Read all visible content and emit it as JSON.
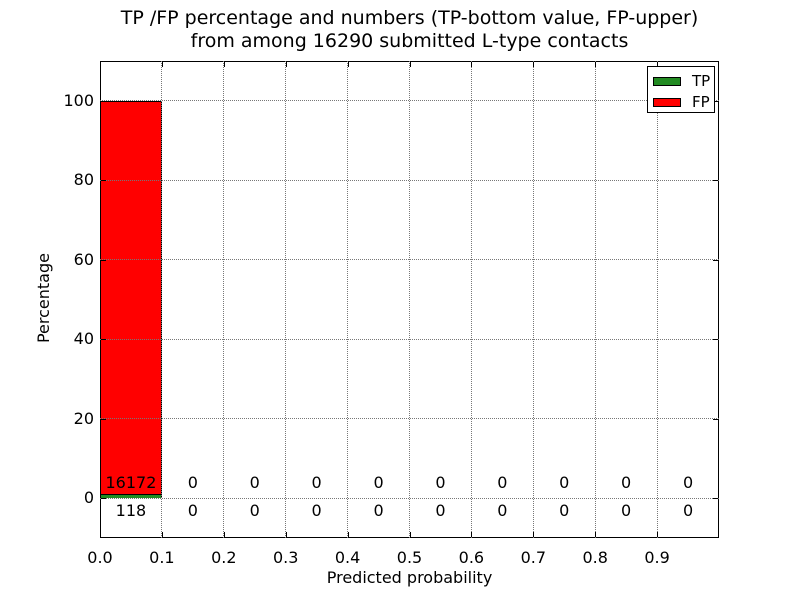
{
  "figure": {
    "title_line1": "TP /FP percentage and numbers (TP-bottom value, FP-upper)",
    "title_line2": "from among 16290 submitted L-type contacts",
    "background": "#ffffff"
  },
  "axes": {
    "xlabel": "Predicted probability",
    "ylabel": "Percentage"
  },
  "legend": {
    "position": "upper right",
    "items": [
      {
        "label": "TP",
        "color": "#228b22"
      },
      {
        "label": "FP",
        "color": "#ff0000"
      }
    ]
  },
  "chart_data": {
    "type": "bar",
    "stacked": true,
    "title": "TP /FP percentage and numbers (TP-bottom value, FP-upper) from among 16290 submitted L-type contacts",
    "xlabel": "Predicted probability",
    "ylabel": "Percentage",
    "xlim": [
      0.0,
      1.0
    ],
    "ylim": [
      -10,
      110
    ],
    "grid": "dotted",
    "legend_position": "upper right",
    "total_contacts": 16290,
    "bin_width": 0.1,
    "bin_starts": [
      0.0,
      0.1,
      0.2,
      0.3,
      0.4,
      0.5,
      0.6,
      0.7,
      0.8,
      0.9
    ],
    "xtick_values": [
      0.0,
      0.1,
      0.2,
      0.3,
      0.4,
      0.5,
      0.6,
      0.7,
      0.8,
      0.9
    ],
    "xtick_labels": [
      "0.0",
      "0.1",
      "0.2",
      "0.3",
      "0.4",
      "0.5",
      "0.6",
      "0.7",
      "0.8",
      "0.9"
    ],
    "ytick_values": [
      0,
      20,
      40,
      60,
      80,
      100
    ],
    "ytick_labels": [
      "0",
      "20",
      "40",
      "60",
      "80",
      "100"
    ],
    "series": [
      {
        "name": "TP",
        "color": "#228b22",
        "label_row": "lower",
        "counts": [
          118,
          0,
          0,
          0,
          0,
          0,
          0,
          0,
          0,
          0
        ],
        "percents": [
          0.7244,
          0,
          0,
          0,
          0,
          0,
          0,
          0,
          0,
          0
        ]
      },
      {
        "name": "FP",
        "color": "#ff0000",
        "label_row": "upper",
        "counts": [
          16172,
          0,
          0,
          0,
          0,
          0,
          0,
          0,
          0,
          0
        ],
        "percents": [
          99.2756,
          0,
          0,
          0,
          0,
          0,
          0,
          0,
          0,
          0
        ]
      }
    ]
  }
}
